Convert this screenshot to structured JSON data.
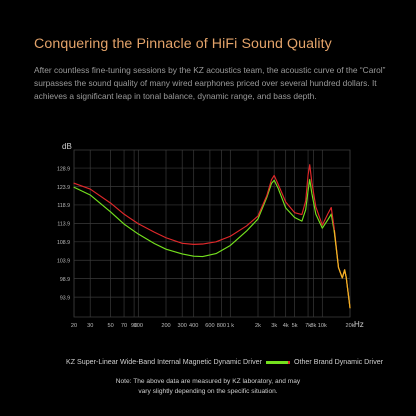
{
  "heading": "Conquering the Pinnacle of HiFi Sound Quality",
  "intro": "After countless fine-tuning sessions by the KZ acoustics team, the acoustic curve of the “Carol” surpasses the sound quality of many wired earphones priced over several hundred dollars. It achieves a significant leap in tonal balance, dynamic range, and bass depth.",
  "note": {
    "line1": "Note: The above data are measured by KZ laboratory, and may",
    "line2": "vary slightly depending on the specific situation."
  },
  "colors": {
    "background": "#000000",
    "heading": "#e3a36a",
    "grid": "#3a3a3a",
    "kz_series": "#e0282a",
    "other_series": "#74e01e",
    "overlap": "#f5b325"
  },
  "chart_data": {
    "type": "line",
    "ylabel": "dB",
    "xunit": "Hz",
    "xscale": "log",
    "xlim": [
      20,
      20000
    ],
    "ylim": [
      88.5,
      133.8
    ],
    "grid": true,
    "legend_position": "bottom",
    "y_ticks": [
      128.9,
      123.9,
      118.9,
      113.9,
      108.9,
      103.9,
      98.9,
      93.9
    ],
    "x_ticks": [
      {
        "value": 20,
        "label": "20"
      },
      {
        "value": 30,
        "label": "30"
      },
      {
        "value": 50,
        "label": "50"
      },
      {
        "value": 70,
        "label": "70"
      },
      {
        "value": 90,
        "label": "90"
      },
      {
        "value": 100,
        "label": "100"
      },
      {
        "value": 200,
        "label": "200"
      },
      {
        "value": 300,
        "label": "300"
      },
      {
        "value": 400,
        "label": "400"
      },
      {
        "value": 600,
        "label": "600"
      },
      {
        "value": 800,
        "label": "800"
      },
      {
        "value": 1000,
        "label": "1 k"
      },
      {
        "value": 2000,
        "label": "2k"
      },
      {
        "value": 3000,
        "label": "3k"
      },
      {
        "value": 4000,
        "label": "4k"
      },
      {
        "value": 5000,
        "label": "5k"
      },
      {
        "value": 7000,
        "label": "7k"
      },
      {
        "value": 8000,
        "label": "8k"
      },
      {
        "value": 10000,
        "label": "10k"
      },
      {
        "value": 20000,
        "label": "20k"
      }
    ],
    "series": [
      {
        "name": "KZ Super-Linear Wide-Band Internal Magnetic Dynamic Driver",
        "color": "#e0282a",
        "points": [
          [
            20,
            124.8
          ],
          [
            30,
            123.2
          ],
          [
            50,
            119.4
          ],
          [
            70,
            116.4
          ],
          [
            100,
            113.8
          ],
          [
            150,
            111.5
          ],
          [
            200,
            110.0
          ],
          [
            300,
            108.5
          ],
          [
            400,
            108.2
          ],
          [
            500,
            108.3
          ],
          [
            700,
            108.9
          ],
          [
            1000,
            110.4
          ],
          [
            1500,
            113.2
          ],
          [
            2000,
            115.9
          ],
          [
            2500,
            121.5
          ],
          [
            2800,
            125.7
          ],
          [
            3000,
            126.9
          ],
          [
            3300,
            124.6
          ],
          [
            4000,
            119.7
          ],
          [
            5000,
            116.8
          ],
          [
            6000,
            116.3
          ],
          [
            6600,
            120.0
          ],
          [
            7000,
            127.0
          ],
          [
            7300,
            129.8
          ],
          [
            7700,
            125.0
          ],
          [
            8500,
            118.4
          ],
          [
            10000,
            113.4
          ],
          [
            11500,
            116.5
          ],
          [
            12500,
            118.2
          ],
          [
            13500,
            112.4
          ],
          [
            15000,
            101.9
          ],
          [
            16500,
            99.1
          ],
          [
            17500,
            101.3
          ],
          [
            18200,
            99.2
          ],
          [
            20000,
            91.0
          ]
        ]
      },
      {
        "name": "Other Brand Dynamic Driver",
        "color": "#74e01e",
        "points": [
          [
            20,
            123.7
          ],
          [
            30,
            121.6
          ],
          [
            50,
            117.0
          ],
          [
            70,
            113.7
          ],
          [
            100,
            111.0
          ],
          [
            150,
            108.4
          ],
          [
            200,
            106.9
          ],
          [
            300,
            105.6
          ],
          [
            400,
            105.0
          ],
          [
            500,
            104.9
          ],
          [
            700,
            105.7
          ],
          [
            1000,
            107.9
          ],
          [
            1500,
            111.8
          ],
          [
            2000,
            115.1
          ],
          [
            2500,
            121.0
          ],
          [
            2800,
            124.7
          ],
          [
            3000,
            125.6
          ],
          [
            3300,
            123.5
          ],
          [
            4000,
            118.1
          ],
          [
            5000,
            115.5
          ],
          [
            6000,
            114.5
          ],
          [
            6600,
            117.6
          ],
          [
            7000,
            122.7
          ],
          [
            7300,
            125.8
          ],
          [
            7700,
            122.0
          ],
          [
            8500,
            116.4
          ],
          [
            10000,
            112.6
          ],
          [
            11500,
            114.9
          ],
          [
            12500,
            116.4
          ],
          [
            13500,
            111.5
          ],
          [
            15000,
            101.9
          ],
          [
            16500,
            99.1
          ],
          [
            17500,
            101.3
          ],
          [
            18200,
            99.2
          ],
          [
            20000,
            91.0
          ]
        ]
      }
    ]
  }
}
